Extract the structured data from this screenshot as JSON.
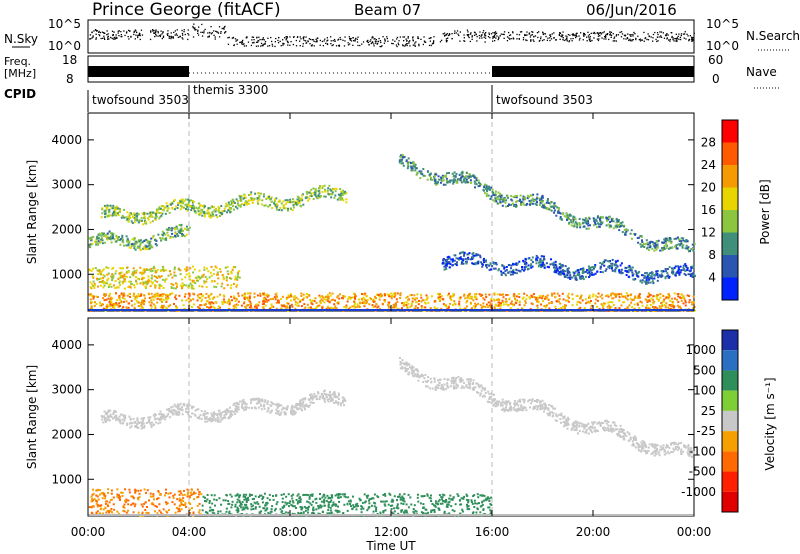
{
  "header": {
    "station": "Prince George (fitACF)",
    "beam": "Beam 07",
    "date": "06/Jun/2016"
  },
  "nsky_panel": {
    "left_label": "N.Sky",
    "right_label": "N.Search",
    "left_ticks": [
      "10^5",
      "10^0"
    ],
    "right_ticks": [
      "10^5",
      "10^0"
    ]
  },
  "freq_panel": {
    "left_label_1": "Freq.",
    "left_label_2": "[MHz]",
    "right_label": "Nave",
    "left_ticks": [
      "18",
      "8"
    ],
    "right_ticks": [
      "60",
      "0"
    ]
  },
  "cpid": {
    "label": "CPID",
    "segments": [
      {
        "name": "twofsound 3503",
        "start_hour": 0,
        "end_hour": 4
      },
      {
        "name": "themis 3300",
        "start_hour": 4,
        "end_hour": 16
      },
      {
        "name": "twofsound 3503",
        "start_hour": 16,
        "end_hour": 24
      }
    ]
  },
  "x_axis": {
    "label": "Time UT",
    "ticks": [
      "00:00",
      "04:00",
      "08:00",
      "12:00",
      "16:00",
      "20:00",
      "00:00"
    ]
  },
  "power_colorbar": {
    "label": "Power [dB]",
    "ticks": [
      "28",
      "24",
      "20",
      "16",
      "12",
      "8",
      "4"
    ],
    "colors": [
      "#0022ff",
      "#2a55b0",
      "#3f8f7a",
      "#8cc63f",
      "#e8d500",
      "#f59a00",
      "#ff5a00",
      "#ff0000"
    ]
  },
  "velocity_colorbar": {
    "label": "Velocity [m s⁻¹]",
    "ticks": [
      "1000",
      "500",
      "100",
      "25",
      "-25",
      "-100",
      "-500",
      "-1000"
    ],
    "colors": [
      "#1b2fa8",
      "#2a6fc2",
      "#2f8f5a",
      "#7ecf35",
      "#c8c8c8",
      "#f5a000",
      "#ff6a00",
      "#ff2000",
      "#e00000"
    ]
  },
  "chart_data": [
    {
      "type": "heatmap",
      "title": "",
      "xlabel": "",
      "ylabel": "Slant Range [km]",
      "xlim_hours": [
        0,
        24
      ],
      "ylim": [
        180,
        4600
      ],
      "yticks": [
        1000,
        2000,
        3000,
        4000
      ],
      "quantity": "Power",
      "units": "dB",
      "echo_bands": [
        {
          "name": "near-range band",
          "start_hour": 0,
          "end_hour": 24,
          "range_min": 180,
          "range_max": 600,
          "level": 22
        },
        {
          "name": "morning E-region",
          "start_hour": 0,
          "end_hour": 6,
          "range_min": 700,
          "range_max": 1200,
          "level": 18
        },
        {
          "name": "rising arc",
          "start_hour": 0.5,
          "end_hour": 10.2,
          "range_start": 2300,
          "range_end": 2800,
          "level": 14
        },
        {
          "name": "lower arc",
          "start_hour": 0,
          "end_hour": 4,
          "range_start": 1700,
          "range_end": 1900,
          "level": 12
        },
        {
          "name": "descending arc",
          "start_hour": 12.3,
          "end_hour": 24,
          "range_start": 3500,
          "range_end": 1500,
          "level": 10
        },
        {
          "name": "afternoon band",
          "start_hour": 14,
          "end_hour": 24,
          "range_start": 1300,
          "range_end": 1000,
          "level": 6
        }
      ]
    },
    {
      "type": "heatmap",
      "title": "",
      "xlabel": "Time UT",
      "ylabel": "Slant Range [km]",
      "xlim_hours": [
        0,
        24
      ],
      "ylim": [
        180,
        4600
      ],
      "yticks": [
        1000,
        2000,
        3000,
        4000
      ],
      "quantity": "Velocity",
      "units": "m s^-1",
      "echo_bands": [
        {
          "name": "near-range band",
          "start_hour": 0,
          "end_hour": 4.5,
          "range_min": 180,
          "range_max": 800,
          "velocity": -100
        },
        {
          "name": "near-range mixed",
          "start_hour": 4.5,
          "end_hour": 16,
          "range_min": 180,
          "range_max": 700,
          "velocity": 100
        },
        {
          "name": "rising arc",
          "start_hour": 0.5,
          "end_hour": 10.2,
          "range_start": 2300,
          "range_end": 2800,
          "velocity": 0
        },
        {
          "name": "descending arc",
          "start_hour": 12.3,
          "end_hour": 24,
          "range_start": 3500,
          "range_end": 1500,
          "velocity": 0
        }
      ]
    }
  ]
}
